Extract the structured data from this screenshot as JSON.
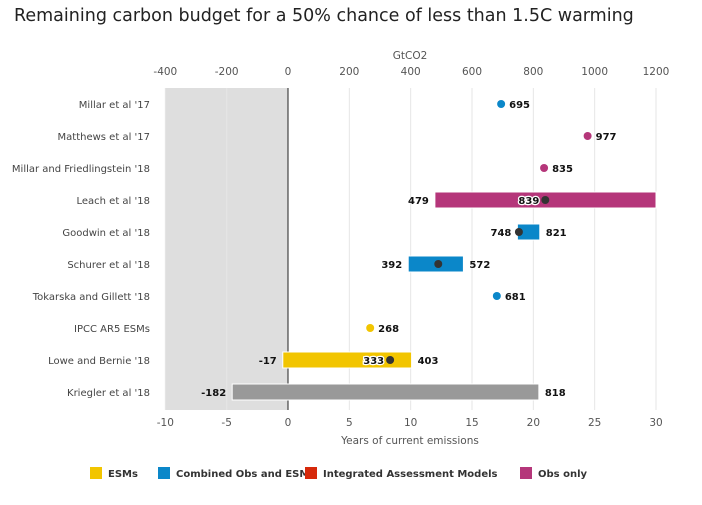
{
  "chart_data": {
    "type": "bar",
    "title": "Remaining carbon budget for a 50% chance of less than 1.5C warming",
    "top_axis": {
      "label": "GtCO2",
      "range": [
        -400,
        1200
      ],
      "ticks": [
        -400,
        -200,
        0,
        200,
        400,
        600,
        800,
        1000,
        1200
      ]
    },
    "bottom_axis": {
      "label": "Years of current emissions",
      "range": [
        -10,
        30
      ],
      "ticks": [
        -10,
        -5,
        0,
        5,
        10,
        15,
        20,
        25,
        30
      ]
    },
    "grid": true,
    "shaded_region": [
      -400,
      0
    ],
    "legend_placement": "bottom",
    "legend": [
      {
        "name": "ESMs",
        "color": "#f2c500"
      },
      {
        "name": "Combined Obs and ESMs",
        "color": "#0b87c9"
      },
      {
        "name": "Integrated Assessment Models",
        "color": "#d6290b"
      },
      {
        "name": "Obs only",
        "color": "#b5367a"
      }
    ],
    "rows": [
      {
        "name": "Millar et al '17",
        "point": 695,
        "color": "#0b87c9"
      },
      {
        "name": "Matthews et al '17",
        "point": 977,
        "color": "#b5367a"
      },
      {
        "name": "Millar and Friedlingstein '18",
        "point": 835,
        "color": "#b5367a"
      },
      {
        "name": "Leach et al '18",
        "low": 479,
        "high": 1200,
        "mid": 839,
        "color": "#b5367a",
        "show_high": false
      },
      {
        "name": "Goodwin et al '18",
        "low": 748,
        "high": 821,
        "mid": 753,
        "color": "#0b87c9",
        "show_mid": false
      },
      {
        "name": "Schurer et al '18",
        "low": 392,
        "high": 572,
        "mid": 490,
        "color": "#0b87c9",
        "show_mid": false
      },
      {
        "name": "Tokarska and Gillett '18",
        "point": 681,
        "color": "#0b87c9"
      },
      {
        "name": "IPCC AR5 ESMs",
        "point": 268,
        "color": "#f2c500"
      },
      {
        "name": "Lowe and Bernie '18",
        "low": -17,
        "high": 403,
        "mid": 333,
        "color": "#f2c500"
      },
      {
        "name": "Kriegler et al '18",
        "low": -182,
        "high": 818,
        "color": "#999999"
      }
    ]
  }
}
